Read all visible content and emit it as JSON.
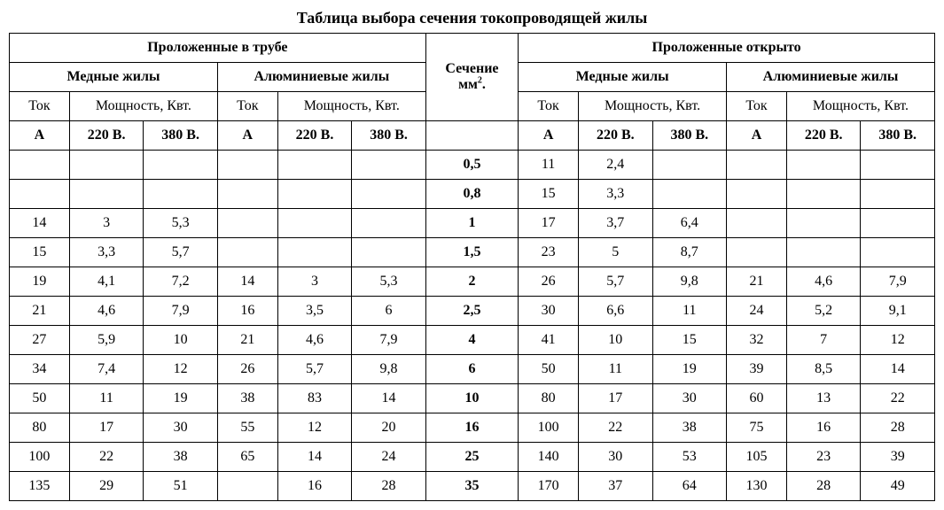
{
  "title": "Таблица выбора сечения токопроводящей жилы",
  "headers": {
    "group_tube": "Проложенные в трубе",
    "group_open": "Проложенные открыто",
    "copper": "Медные жилы",
    "aluminum": "Алюминиевые жилы",
    "section_line1": "Сечение",
    "section_line2_pre": "мм",
    "section_line2_sup": "2",
    "section_line2_post": ".",
    "current": "Ток",
    "power": "Мощность, Квт.",
    "A": "A",
    "v220": "220 В.",
    "v380": "380 В."
  },
  "table": {
    "type": "table",
    "background_color": "#ffffff",
    "border_color": "#000000",
    "font_family": "Times New Roman",
    "header_fontsize": 18,
    "cell_fontsize": 16,
    "columns": [
      "tube_cu_A",
      "tube_cu_220",
      "tube_cu_380",
      "tube_al_A",
      "tube_al_220",
      "tube_al_380",
      "section",
      "open_cu_A",
      "open_cu_220",
      "open_cu_380",
      "open_al_A",
      "open_al_220",
      "open_al_380"
    ],
    "rows": [
      [
        "",
        "",
        "",
        "",
        "",
        "",
        "0,5",
        "11",
        "2,4",
        "",
        "",
        "",
        ""
      ],
      [
        "",
        "",
        "",
        "",
        "",
        "",
        "0,8",
        "15",
        "3,3",
        "",
        "",
        "",
        ""
      ],
      [
        "14",
        "3",
        "5,3",
        "",
        "",
        "",
        "1",
        "17",
        "3,7",
        "6,4",
        "",
        "",
        ""
      ],
      [
        "15",
        "3,3",
        "5,7",
        "",
        "",
        "",
        "1,5",
        "23",
        "5",
        "8,7",
        "",
        "",
        ""
      ],
      [
        "19",
        "4,1",
        "7,2",
        "14",
        "3",
        "5,3",
        "2",
        "26",
        "5,7",
        "9,8",
        "21",
        "4,6",
        "7,9"
      ],
      [
        "21",
        "4,6",
        "7,9",
        "16",
        "3,5",
        "6",
        "2,5",
        "30",
        "6,6",
        "11",
        "24",
        "5,2",
        "9,1"
      ],
      [
        "27",
        "5,9",
        "10",
        "21",
        "4,6",
        "7,9",
        "4",
        "41",
        "10",
        "15",
        "32",
        "7",
        "12"
      ],
      [
        "34",
        "7,4",
        "12",
        "26",
        "5,7",
        "9,8",
        "6",
        "50",
        "11",
        "19",
        "39",
        "8,5",
        "14"
      ],
      [
        "50",
        "11",
        "19",
        "38",
        "83",
        "14",
        "10",
        "80",
        "17",
        "30",
        "60",
        "13",
        "22"
      ],
      [
        "80",
        "17",
        "30",
        "55",
        "12",
        "20",
        "16",
        "100",
        "22",
        "38",
        "75",
        "16",
        "28"
      ],
      [
        "100",
        "22",
        "38",
        "65",
        "14",
        "24",
        "25",
        "140",
        "30",
        "53",
        "105",
        "23",
        "39"
      ],
      [
        "135",
        "29",
        "51",
        "",
        "16",
        "28",
        "35",
        "170",
        "37",
        "64",
        "130",
        "28",
        "49"
      ]
    ]
  }
}
